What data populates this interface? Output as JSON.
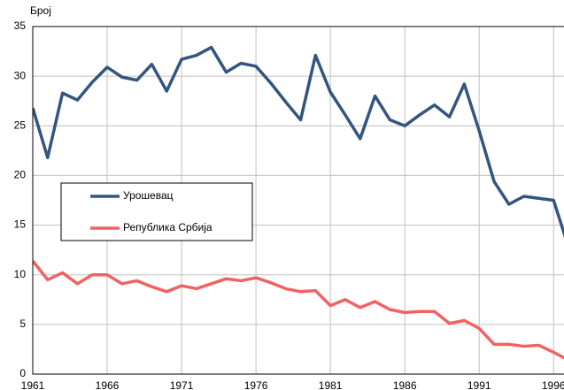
{
  "chart_data": {
    "type": "line",
    "ylabel": "Број",
    "x": [
      1961,
      1962,
      1963,
      1964,
      1965,
      1966,
      1967,
      1968,
      1969,
      1970,
      1971,
      1972,
      1973,
      1974,
      1975,
      1976,
      1977,
      1978,
      1979,
      1980,
      1981,
      1982,
      1983,
      1984,
      1985,
      1986,
      1987,
      1988,
      1989,
      1990,
      1991,
      1992,
      1993,
      1994,
      1995,
      1996,
      1997
    ],
    "series": [
      {
        "name": "Урошевац",
        "color": "#34557f",
        "values": [
          26.8,
          21.8,
          28.3,
          27.6,
          29.4,
          30.9,
          29.9,
          29.6,
          31.2,
          28.5,
          31.7,
          32.1,
          32.9,
          30.4,
          31.3,
          31.0,
          29.3,
          27.4,
          25.6,
          32.1,
          28.4,
          26.1,
          23.7,
          28.0,
          25.6,
          25.0,
          26.1,
          27.1,
          25.9,
          29.2,
          24.5,
          19.4,
          17.1,
          17.9,
          17.7,
          17.5,
          12.8
        ]
      },
      {
        "name": "Република Србија",
        "color": "#f26262",
        "values": [
          11.4,
          9.5,
          10.2,
          9.1,
          10.0,
          10.0,
          9.1,
          9.4,
          8.8,
          8.3,
          8.9,
          8.6,
          9.1,
          9.6,
          9.4,
          9.7,
          9.2,
          8.6,
          8.3,
          8.4,
          6.9,
          7.5,
          6.7,
          7.3,
          6.5,
          6.2,
          6.3,
          6.3,
          5.1,
          5.4,
          4.6,
          3.0,
          3.0,
          2.8,
          2.9,
          2.2,
          1.4
        ]
      }
    ],
    "xlim": [
      1961,
      1996.7
    ],
    "xticks": [
      1961,
      1966,
      1971,
      1976,
      1981,
      1986,
      1991,
      1996
    ],
    "ylim": [
      0,
      35
    ],
    "yticks": [
      0,
      5,
      10,
      15,
      20,
      25,
      30,
      35
    ],
    "grid": true
  }
}
